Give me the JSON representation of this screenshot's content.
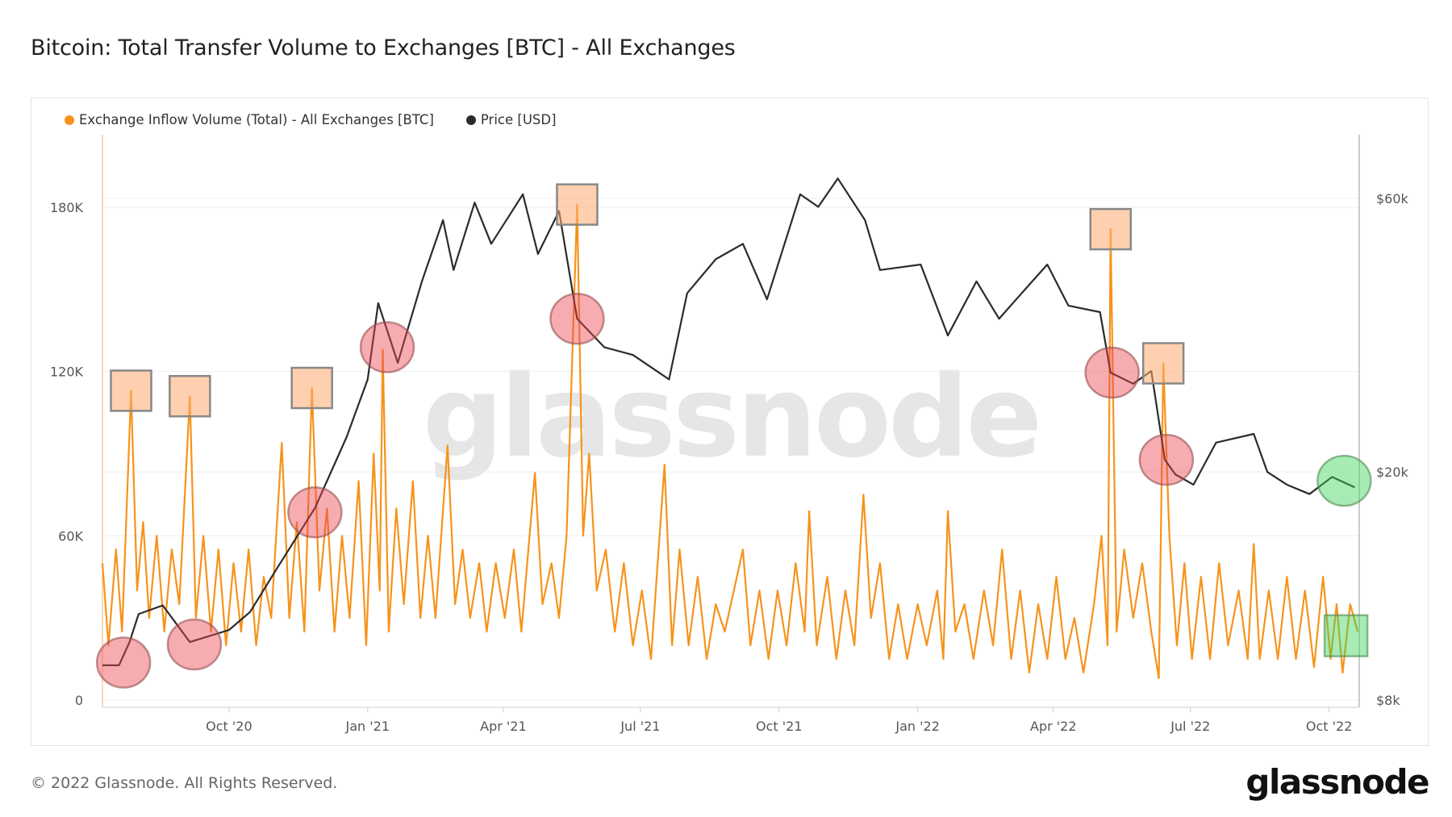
{
  "title": "Bitcoin: Total Transfer Volume to Exchanges [BTC] - All Exchanges",
  "footer": "© 2022 Glassnode. All Rights Reserved.",
  "logo": "glassnode",
  "watermark": "glassnode",
  "chart_data": {
    "type": "line",
    "title": "Bitcoin: Total Transfer Volume to Exchanges [BTC] - All Exchanges",
    "legend_position": "top-left",
    "grid": true,
    "x_range": [
      "2020-07-09",
      "2022-10-21"
    ],
    "x_ticks": [
      {
        "date": "2020-10-01",
        "label": "Oct '20"
      },
      {
        "date": "2021-01-01",
        "label": "Jan '21"
      },
      {
        "date": "2021-04-01",
        "label": "Apr '21"
      },
      {
        "date": "2021-07-01",
        "label": "Jul '21"
      },
      {
        "date": "2021-10-01",
        "label": "Oct '21"
      },
      {
        "date": "2022-01-01",
        "label": "Jan '22"
      },
      {
        "date": "2022-04-01",
        "label": "Apr '22"
      },
      {
        "date": "2022-07-01",
        "label": "Jul '22"
      },
      {
        "date": "2022-10-01",
        "label": "Oct '22"
      }
    ],
    "y_left": {
      "scale": "linear",
      "range": [
        0,
        200000
      ],
      "ticks": [
        {
          "v": 0,
          "label": "0"
        },
        {
          "v": 60000,
          "label": "60K"
        },
        {
          "v": 120000,
          "label": "120K"
        },
        {
          "v": 180000,
          "label": "180K"
        }
      ]
    },
    "y_right": {
      "scale": "log",
      "range": [
        8000,
        65000
      ],
      "ticks": [
        {
          "v": 8000,
          "label": "$8k"
        },
        {
          "v": 20000,
          "label": "$20k"
        },
        {
          "v": 60000,
          "label": "$60k"
        }
      ]
    },
    "series": [
      {
        "name": "Exchange Inflow Volume (Total) - All Exchanges [BTC]",
        "color": "#f7931a",
        "axis": "left",
        "points": [
          [
            "2020-07-09",
            50000
          ],
          [
            "2020-07-13",
            20000
          ],
          [
            "2020-07-18",
            55000
          ],
          [
            "2020-07-22",
            25000
          ],
          [
            "2020-07-28",
            113000
          ],
          [
            "2020-08-01",
            40000
          ],
          [
            "2020-08-05",
            65000
          ],
          [
            "2020-08-09",
            30000
          ],
          [
            "2020-08-14",
            60000
          ],
          [
            "2020-08-19",
            25000
          ],
          [
            "2020-08-24",
            55000
          ],
          [
            "2020-08-29",
            35000
          ],
          [
            "2020-09-05",
            111000
          ],
          [
            "2020-09-09",
            30000
          ],
          [
            "2020-09-14",
            60000
          ],
          [
            "2020-09-19",
            25000
          ],
          [
            "2020-09-24",
            55000
          ],
          [
            "2020-09-29",
            20000
          ],
          [
            "2020-10-04",
            50000
          ],
          [
            "2020-10-09",
            25000
          ],
          [
            "2020-10-14",
            55000
          ],
          [
            "2020-10-19",
            20000
          ],
          [
            "2020-10-24",
            45000
          ],
          [
            "2020-10-29",
            30000
          ],
          [
            "2020-11-05",
            94000
          ],
          [
            "2020-11-10",
            30000
          ],
          [
            "2020-11-15",
            65000
          ],
          [
            "2020-11-20",
            25000
          ],
          [
            "2020-11-25",
            114000
          ],
          [
            "2020-11-30",
            40000
          ],
          [
            "2020-12-05",
            70000
          ],
          [
            "2020-12-10",
            25000
          ],
          [
            "2020-12-15",
            60000
          ],
          [
            "2020-12-20",
            30000
          ],
          [
            "2020-12-26",
            80000
          ],
          [
            "2020-12-31",
            20000
          ],
          [
            "2021-01-05",
            90000
          ],
          [
            "2021-01-09",
            40000
          ],
          [
            "2021-01-11",
            128000
          ],
          [
            "2021-01-15",
            25000
          ],
          [
            "2021-01-20",
            70000
          ],
          [
            "2021-01-25",
            35000
          ],
          [
            "2021-01-31",
            80000
          ],
          [
            "2021-02-05",
            30000
          ],
          [
            "2021-02-10",
            60000
          ],
          [
            "2021-02-15",
            30000
          ],
          [
            "2021-02-23",
            93000
          ],
          [
            "2021-02-28",
            35000
          ],
          [
            "2021-03-05",
            55000
          ],
          [
            "2021-03-10",
            30000
          ],
          [
            "2021-03-16",
            50000
          ],
          [
            "2021-03-21",
            25000
          ],
          [
            "2021-03-27",
            50000
          ],
          [
            "2021-04-02",
            30000
          ],
          [
            "2021-04-08",
            55000
          ],
          [
            "2021-04-13",
            25000
          ],
          [
            "2021-04-22",
            83000
          ],
          [
            "2021-04-27",
            35000
          ],
          [
            "2021-05-03",
            50000
          ],
          [
            "2021-05-08",
            30000
          ],
          [
            "2021-05-13",
            60000
          ],
          [
            "2021-05-20",
            181000
          ],
          [
            "2021-05-24",
            60000
          ],
          [
            "2021-05-28",
            90000
          ],
          [
            "2021-06-02",
            40000
          ],
          [
            "2021-06-08",
            55000
          ],
          [
            "2021-06-14",
            25000
          ],
          [
            "2021-06-20",
            50000
          ],
          [
            "2021-06-26",
            20000
          ],
          [
            "2021-07-02",
            40000
          ],
          [
            "2021-07-08",
            15000
          ],
          [
            "2021-07-17",
            86000
          ],
          [
            "2021-07-22",
            20000
          ],
          [
            "2021-07-27",
            55000
          ],
          [
            "2021-08-02",
            20000
          ],
          [
            "2021-08-08",
            45000
          ],
          [
            "2021-08-14",
            15000
          ],
          [
            "2021-08-20",
            35000
          ],
          [
            "2021-08-26",
            25000
          ],
          [
            "2021-09-01",
            40000
          ],
          [
            "2021-09-07",
            55000
          ],
          [
            "2021-09-12",
            20000
          ],
          [
            "2021-09-18",
            40000
          ],
          [
            "2021-09-24",
            15000
          ],
          [
            "2021-09-30",
            40000
          ],
          [
            "2021-10-06",
            20000
          ],
          [
            "2021-10-12",
            50000
          ],
          [
            "2021-10-18",
            25000
          ],
          [
            "2021-10-21",
            69000
          ],
          [
            "2021-10-26",
            20000
          ],
          [
            "2021-11-02",
            45000
          ],
          [
            "2021-11-08",
            15000
          ],
          [
            "2021-11-14",
            40000
          ],
          [
            "2021-11-20",
            20000
          ],
          [
            "2021-11-26",
            75000
          ],
          [
            "2021-12-01",
            30000
          ],
          [
            "2021-12-07",
            50000
          ],
          [
            "2021-12-13",
            15000
          ],
          [
            "2021-12-19",
            35000
          ],
          [
            "2021-12-25",
            15000
          ],
          [
            "2022-01-01",
            35000
          ],
          [
            "2022-01-07",
            20000
          ],
          [
            "2022-01-14",
            40000
          ],
          [
            "2022-01-18",
            15000
          ],
          [
            "2022-01-21",
            69000
          ],
          [
            "2022-01-26",
            25000
          ],
          [
            "2022-02-01",
            35000
          ],
          [
            "2022-02-07",
            15000
          ],
          [
            "2022-02-14",
            40000
          ],
          [
            "2022-02-20",
            20000
          ],
          [
            "2022-02-26",
            55000
          ],
          [
            "2022-03-04",
            15000
          ],
          [
            "2022-03-10",
            40000
          ],
          [
            "2022-03-16",
            10000
          ],
          [
            "2022-03-22",
            35000
          ],
          [
            "2022-03-28",
            15000
          ],
          [
            "2022-04-03",
            45000
          ],
          [
            "2022-04-09",
            15000
          ],
          [
            "2022-04-15",
            30000
          ],
          [
            "2022-04-21",
            10000
          ],
          [
            "2022-04-28",
            35000
          ],
          [
            "2022-05-03",
            60000
          ],
          [
            "2022-05-07",
            20000
          ],
          [
            "2022-05-09",
            172000
          ],
          [
            "2022-05-13",
            25000
          ],
          [
            "2022-05-18",
            55000
          ],
          [
            "2022-05-24",
            30000
          ],
          [
            "2022-05-30",
            50000
          ],
          [
            "2022-06-05",
            25000
          ],
          [
            "2022-06-10",
            8000
          ],
          [
            "2022-06-13",
            123000
          ],
          [
            "2022-06-17",
            60000
          ],
          [
            "2022-06-22",
            20000
          ],
          [
            "2022-06-27",
            50000
          ],
          [
            "2022-07-02",
            15000
          ],
          [
            "2022-07-08",
            45000
          ],
          [
            "2022-07-14",
            15000
          ],
          [
            "2022-07-20",
            50000
          ],
          [
            "2022-07-26",
            20000
          ],
          [
            "2022-08-02",
            40000
          ],
          [
            "2022-08-08",
            15000
          ],
          [
            "2022-08-12",
            57000
          ],
          [
            "2022-08-16",
            15000
          ],
          [
            "2022-08-22",
            40000
          ],
          [
            "2022-08-28",
            15000
          ],
          [
            "2022-09-03",
            45000
          ],
          [
            "2022-09-09",
            15000
          ],
          [
            "2022-09-15",
            40000
          ],
          [
            "2022-09-21",
            12000
          ],
          [
            "2022-09-27",
            45000
          ],
          [
            "2022-10-02",
            15000
          ],
          [
            "2022-10-06",
            35000
          ],
          [
            "2022-10-10",
            10000
          ],
          [
            "2022-10-15",
            35000
          ],
          [
            "2022-10-20",
            25000
          ]
        ]
      },
      {
        "name": "Price [USD]",
        "color": "#2b2b2b",
        "axis": "right",
        "points": [
          [
            "2020-07-09",
            9200
          ],
          [
            "2020-07-20",
            9200
          ],
          [
            "2020-07-27",
            10100
          ],
          [
            "2020-08-02",
            11300
          ],
          [
            "2020-08-18",
            11700
          ],
          [
            "2020-09-05",
            10100
          ],
          [
            "2020-10-01",
            10600
          ],
          [
            "2020-10-15",
            11400
          ],
          [
            "2020-11-02",
            13600
          ],
          [
            "2020-11-27",
            17300
          ],
          [
            "2020-12-18",
            23000
          ],
          [
            "2021-01-01",
            29000
          ],
          [
            "2021-01-08",
            39400
          ],
          [
            "2021-01-21",
            31000
          ],
          [
            "2021-02-06",
            43000
          ],
          [
            "2021-02-20",
            55000
          ],
          [
            "2021-02-27",
            45000
          ],
          [
            "2021-03-13",
            59000
          ],
          [
            "2021-03-24",
            50000
          ],
          [
            "2021-04-14",
            61000
          ],
          [
            "2021-04-24",
            48000
          ],
          [
            "2021-05-08",
            57000
          ],
          [
            "2021-05-20",
            37000
          ],
          [
            "2021-06-07",
            33000
          ],
          [
            "2021-06-26",
            32000
          ],
          [
            "2021-07-20",
            29000
          ],
          [
            "2021-08-01",
            41000
          ],
          [
            "2021-08-20",
            47000
          ],
          [
            "2021-09-07",
            50000
          ],
          [
            "2021-09-23",
            40000
          ],
          [
            "2021-10-15",
            61000
          ],
          [
            "2021-10-27",
            58000
          ],
          [
            "2021-11-09",
            65000
          ],
          [
            "2021-11-27",
            55000
          ],
          [
            "2021-12-07",
            45000
          ],
          [
            "2022-01-03",
            46000
          ],
          [
            "2022-01-21",
            34600
          ],
          [
            "2022-02-09",
            43000
          ],
          [
            "2022-02-24",
            37000
          ],
          [
            "2022-03-11",
            41000
          ],
          [
            "2022-03-28",
            46000
          ],
          [
            "2022-04-11",
            39000
          ],
          [
            "2022-05-02",
            38000
          ],
          [
            "2022-05-09",
            29800
          ],
          [
            "2022-05-24",
            28500
          ],
          [
            "2022-06-05",
            30000
          ],
          [
            "2022-06-14",
            21000
          ],
          [
            "2022-06-21",
            19800
          ],
          [
            "2022-07-03",
            19000
          ],
          [
            "2022-07-18",
            22500
          ],
          [
            "2022-08-12",
            23300
          ],
          [
            "2022-08-21",
            20000
          ],
          [
            "2022-09-03",
            19000
          ],
          [
            "2022-09-18",
            18300
          ],
          [
            "2022-10-03",
            19600
          ],
          [
            "2022-10-18",
            18800
          ]
        ]
      }
    ],
    "annotations": {
      "orange_squares": [
        [
          "2020-07-28",
          113000
        ],
        [
          "2020-09-05",
          111000
        ],
        [
          "2020-11-25",
          114000
        ],
        [
          "2021-05-20",
          181000
        ],
        [
          "2022-05-09",
          172000
        ],
        [
          "2022-06-13",
          123000
        ]
      ],
      "red_circles_on_price": [
        [
          "2020-07-23",
          9300
        ],
        [
          "2020-09-08",
          10000
        ],
        [
          "2020-11-27",
          17000
        ],
        [
          "2021-01-14",
          33000
        ],
        [
          "2021-05-20",
          37000
        ],
        [
          "2022-05-10",
          29800
        ],
        [
          "2022-06-15",
          21000
        ]
      ],
      "green_circle_on_price": [
        "2022-10-11",
        19300
      ],
      "green_square_on_inflow": {
        "from": "2022-09-28",
        "to": "2022-10-20",
        "low": 16000,
        "high": 31000
      }
    }
  }
}
